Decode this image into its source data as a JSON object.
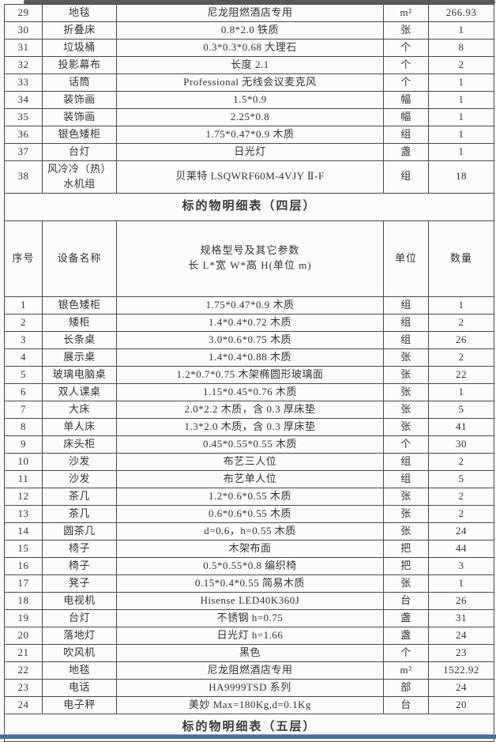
{
  "colors": {
    "border": "#4a4a4a",
    "scan_bar": "#595959",
    "bottom_rule": "#4a6c9f",
    "text": "#333333"
  },
  "table_top": {
    "rows": [
      {
        "no": "29",
        "name": "地毯",
        "spec": "尼龙阻燃酒店专用",
        "unit": "m²",
        "qty": "266.93"
      },
      {
        "no": "30",
        "name": "折叠床",
        "spec": "0.8*2.0 铁质",
        "unit": "张",
        "qty": "1"
      },
      {
        "no": "31",
        "name": "垃圾桶",
        "spec": "0.3*0.3*0.68 大理石",
        "unit": "个",
        "qty": "8"
      },
      {
        "no": "32",
        "name": "投影幕布",
        "spec": "长度 2.1",
        "unit": "个",
        "qty": "2"
      },
      {
        "no": "33",
        "name": "话筒",
        "spec": "Professional 无线会议麦克风",
        "unit": "个",
        "qty": "1"
      },
      {
        "no": "34",
        "name": "装饰画",
        "spec": "1.5*0.9",
        "unit": "幅",
        "qty": "1"
      },
      {
        "no": "35",
        "name": "装饰画",
        "spec": "2.25*0.8",
        "unit": "幅",
        "qty": "1"
      },
      {
        "no": "36",
        "name": "银色矮柜",
        "spec": "1.75*0.47*0.9 木质",
        "unit": "组",
        "qty": "1"
      },
      {
        "no": "37",
        "name": "台灯",
        "spec": "日光灯",
        "unit": "盏",
        "qty": "1"
      },
      {
        "no": "38",
        "name": "风冷冷（热）水机组",
        "spec": "贝莱特 LSQWRF60M-4VJY Ⅱ-F",
        "unit": "组",
        "qty": "18"
      }
    ]
  },
  "section_title_4f": "标的物明细表（四层）",
  "section_title_5f": "标的物明细表（五层）",
  "table_4f": {
    "headers": {
      "no": "序号",
      "name": "设备名称",
      "spec_line1": "规格型号及其它参数",
      "spec_line2": "长 L*宽 W*高 H(单位 m)",
      "unit": "单位",
      "qty": "数量"
    },
    "rows": [
      {
        "no": "1",
        "name": "银色矮柜",
        "spec": "1.75*0.47*0.9 木质",
        "unit": "组",
        "qty": "1"
      },
      {
        "no": "2",
        "name": "矮柜",
        "spec": "1.4*0.4*0.72 木质",
        "unit": "组",
        "qty": "2"
      },
      {
        "no": "3",
        "name": "长条桌",
        "spec": "3.0*0.6*0.75 木质",
        "unit": "组",
        "qty": "26"
      },
      {
        "no": "4",
        "name": "展示桌",
        "spec": "1.4*0.4*0.88 木质",
        "unit": "张",
        "qty": "2"
      },
      {
        "no": "5",
        "name": "玻璃电脑桌",
        "spec": "1.2*0.7*0.75 木架椭圆形玻璃面",
        "unit": "张",
        "qty": "22"
      },
      {
        "no": "6",
        "name": "双人课桌",
        "spec": "1.15*0.45*0.76 木质",
        "unit": "张",
        "qty": "1"
      },
      {
        "no": "7",
        "name": "大床",
        "spec": "2.0*2.2 木质，含 0.3 厚床垫",
        "unit": "张",
        "qty": "5"
      },
      {
        "no": "8",
        "name": "单人床",
        "spec": "1.3*2.0 木质，含 0.3 厚床垫",
        "unit": "张",
        "qty": "41"
      },
      {
        "no": "9",
        "name": "床头柜",
        "spec": "0.45*0.55*0.55 木质",
        "unit": "个",
        "qty": "30"
      },
      {
        "no": "10",
        "name": "沙发",
        "spec": "布艺三人位",
        "unit": "组",
        "qty": "2"
      },
      {
        "no": "11",
        "name": "沙发",
        "spec": "布艺单人位",
        "unit": "组",
        "qty": "5"
      },
      {
        "no": "12",
        "name": "茶几",
        "spec": "1.2*0.6*0.55 木质",
        "unit": "张",
        "qty": "2"
      },
      {
        "no": "13",
        "name": "茶几",
        "spec": "0.6*0.6*0.55 木质",
        "unit": "张",
        "qty": "2"
      },
      {
        "no": "14",
        "name": "圆茶几",
        "spec": "d=0.6，h=0.55 木质",
        "unit": "张",
        "qty": "24"
      },
      {
        "no": "15",
        "name": "椅子",
        "spec": "木架布面",
        "unit": "把",
        "qty": "44"
      },
      {
        "no": "16",
        "name": "椅子",
        "spec": "0.5*0.55*0.8 编织椅",
        "unit": "把",
        "qty": "3"
      },
      {
        "no": "17",
        "name": "凳子",
        "spec": "0.15*0.4*0.55 简易木质",
        "unit": "张",
        "qty": "1"
      },
      {
        "no": "18",
        "name": "电视机",
        "spec": "Hisense LED40K360J",
        "unit": "台",
        "qty": "26"
      },
      {
        "no": "19",
        "name": "台灯",
        "spec": "不锈钢 h=0.75",
        "unit": "盏",
        "qty": "31"
      },
      {
        "no": "20",
        "name": "落地灯",
        "spec": "日光灯 h=1.66",
        "unit": "盏",
        "qty": "24"
      },
      {
        "no": "21",
        "name": "吹风机",
        "spec": "黑色",
        "unit": "个",
        "qty": "23"
      },
      {
        "no": "22",
        "name": "地毯",
        "spec": "尼龙阻燃酒店专用",
        "unit": "m²",
        "qty": "1522.92"
      },
      {
        "no": "23",
        "name": "电话",
        "spec": "HA9999TSD 系列",
        "unit": "部",
        "qty": "24"
      },
      {
        "no": "24",
        "name": "电子秤",
        "spec": "美妙 Max=180Kg,d=0.1Kg",
        "unit": "台",
        "qty": "20"
      }
    ]
  }
}
